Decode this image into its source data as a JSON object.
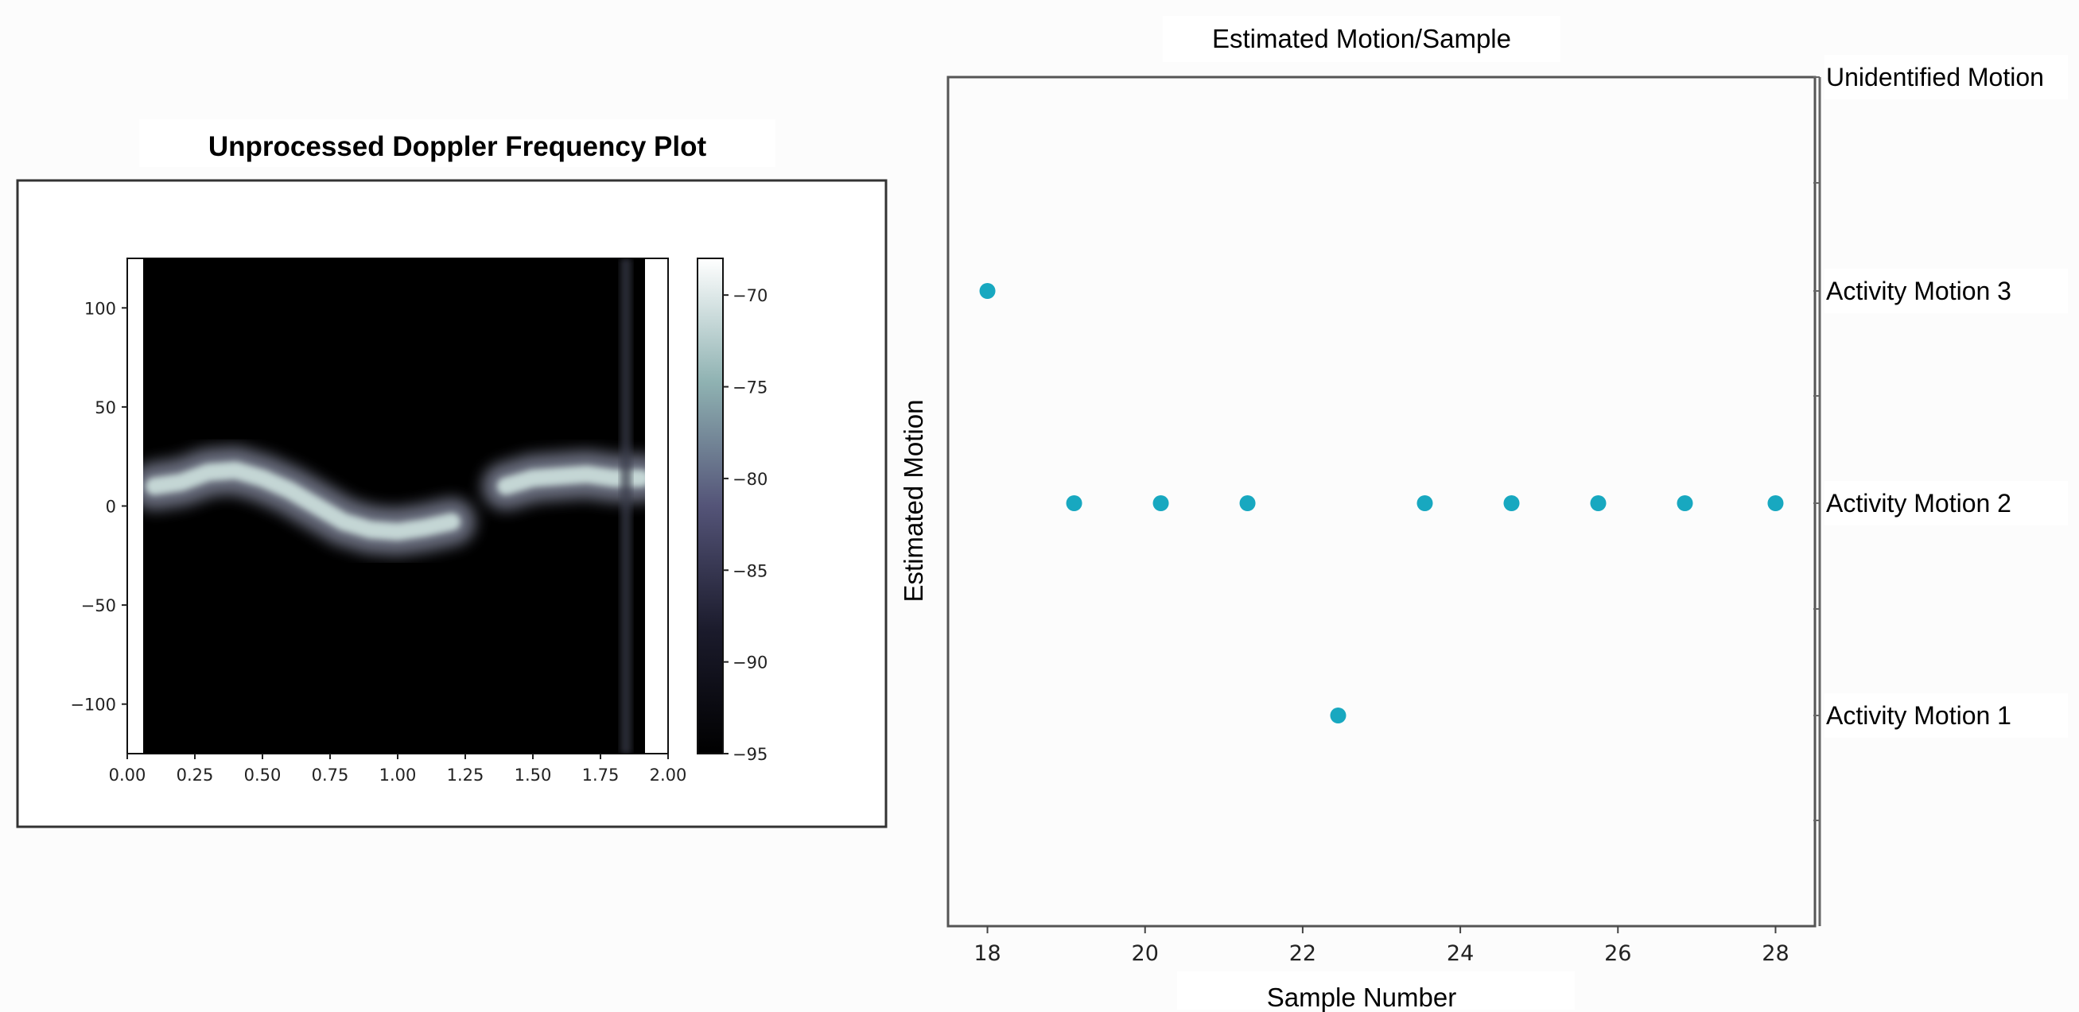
{
  "heatmap_plot": {
    "title": "Unprocessed Doppler Frequency Plot",
    "colorbar": {
      "min": -95,
      "max": -68,
      "ticks": [
        -70,
        -75,
        -80,
        -85,
        -90,
        -95
      ]
    }
  },
  "scatter_plot": {
    "title": "Estimated Motion/Sample",
    "xlabel": "Sample Number",
    "ylabel": "Estimated Motion"
  },
  "colors": {
    "marker": "#18a8c0",
    "heat_background": "#000000",
    "heat_band": "#cfe2df",
    "frame": "#333333"
  },
  "chart_data": [
    {
      "type": "heatmap",
      "title": "Unprocessed Doppler Frequency Plot",
      "x_ticks": [
        "0.00",
        "0.25",
        "0.50",
        "0.75",
        "1.00",
        "1.25",
        "1.50",
        "1.75",
        "2.00"
      ],
      "y_ticks": [
        "100",
        "50",
        "0",
        "−50",
        "−100"
      ],
      "xlim": [
        0,
        2.0
      ],
      "ylim": [
        -125,
        125
      ],
      "colorbar_ticks": [
        "−70",
        "−75",
        "−80",
        "−85",
        "−90",
        "−95"
      ],
      "band_path": [
        {
          "x": 0.1,
          "y": 10
        },
        {
          "x": 0.2,
          "y": 12
        },
        {
          "x": 0.3,
          "y": 17
        },
        {
          "x": 0.4,
          "y": 18
        },
        {
          "x": 0.5,
          "y": 14
        },
        {
          "x": 0.6,
          "y": 8
        },
        {
          "x": 0.7,
          "y": 0
        },
        {
          "x": 0.8,
          "y": -8
        },
        {
          "x": 0.9,
          "y": -12
        },
        {
          "x": 1.0,
          "y": -13
        },
        {
          "x": 1.1,
          "y": -11
        },
        {
          "x": 1.2,
          "y": -8
        },
        {
          "x": 1.4,
          "y": 10
        },
        {
          "x": 1.5,
          "y": 14
        },
        {
          "x": 1.6,
          "y": 15
        },
        {
          "x": 1.7,
          "y": 16
        },
        {
          "x": 1.8,
          "y": 14
        },
        {
          "x": 1.9,
          "y": 14
        }
      ]
    },
    {
      "type": "scatter",
      "title": "Estimated Motion/Sample",
      "xlabel": "Sample Number",
      "ylabel": "Estimated Motion",
      "xlim": [
        17.5,
        28.5
      ],
      "x_ticks": [
        "18",
        "20",
        "22",
        "24",
        "26",
        "28"
      ],
      "y_categories": [
        "Activity Motion 1",
        "Activity Motion 2",
        "Activity Motion 3",
        "Unidentified Motion"
      ],
      "x": [
        18,
        19.1,
        20.2,
        21.3,
        22.45,
        23.55,
        24.65,
        25.75,
        26.85,
        28
      ],
      "y": [
        "Activity Motion 3",
        "Activity Motion 2",
        "Activity Motion 2",
        "Activity Motion 2",
        "Activity Motion 1",
        "Activity Motion 2",
        "Activity Motion 2",
        "Activity Motion 2",
        "Activity Motion 2",
        "Activity Motion 2"
      ]
    }
  ]
}
